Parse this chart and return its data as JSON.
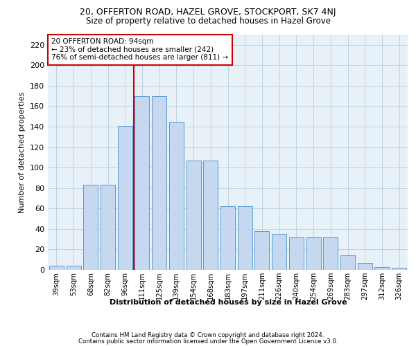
{
  "title1": "20, OFFERTON ROAD, HAZEL GROVE, STOCKPORT, SK7 4NJ",
  "title2": "Size of property relative to detached houses in Hazel Grove",
  "xlabel": "Distribution of detached houses by size in Hazel Grove",
  "ylabel": "Number of detached properties",
  "categories": [
    "39sqm",
    "53sqm",
    "68sqm",
    "82sqm",
    "96sqm",
    "111sqm",
    "125sqm",
    "139sqm",
    "154sqm",
    "168sqm",
    "183sqm",
    "197sqm",
    "211sqm",
    "226sqm",
    "240sqm",
    "254sqm",
    "269sqm",
    "283sqm",
    "297sqm",
    "312sqm",
    "326sqm"
  ],
  "bar_heights": [
    4,
    4,
    83,
    83,
    141,
    170,
    170,
    145,
    107,
    107,
    62,
    62,
    38,
    35,
    32,
    32,
    32,
    14,
    7,
    3,
    2
  ],
  "bar_color": "#c5d8f0",
  "bar_edge_color": "#5b9bd5",
  "vline_x": 4.5,
  "vline_color": "#cc0000",
  "annotation_box_text": "20 OFFERTON ROAD: 94sqm\n← 23% of detached houses are smaller (242)\n76% of semi-detached houses are larger (811) →",
  "annotation_box_color": "#cc0000",
  "ylim": [
    0,
    230
  ],
  "yticks": [
    0,
    20,
    40,
    60,
    80,
    100,
    120,
    140,
    160,
    180,
    200,
    220
  ],
  "grid_color": "#b8cfe0",
  "bg_color": "#e8f0f8",
  "footer1": "Contains HM Land Registry data © Crown copyright and database right 2024.",
  "footer2": "Contains public sector information licensed under the Open Government Licence v3.0."
}
